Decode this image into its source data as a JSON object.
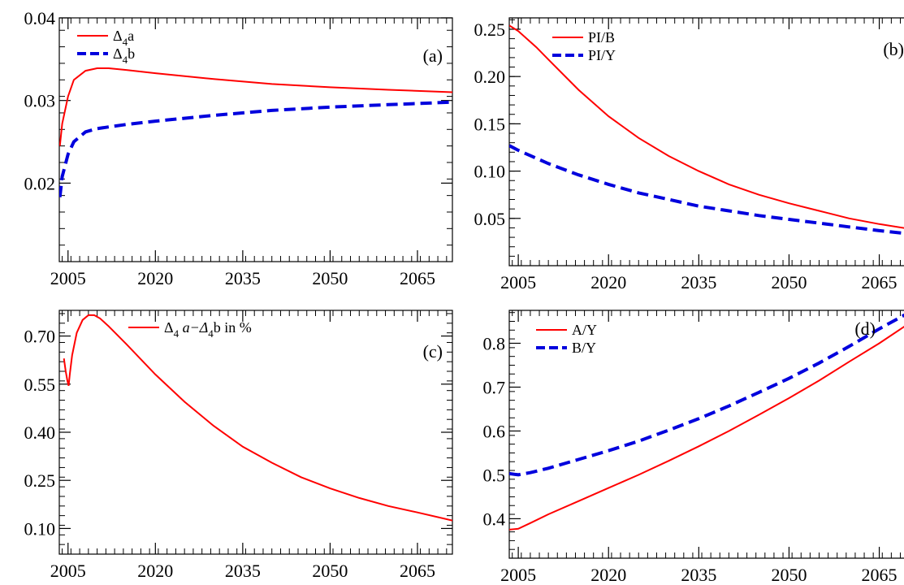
{
  "chart_data": [
    {
      "id": "a",
      "type": "line",
      "panel_tag": "(a)",
      "xlim": [
        2003.5,
        2071
      ],
      "ylim": [
        0.0105,
        0.04
      ],
      "xticks": [
        2005,
        2020,
        2035,
        2050,
        2065
      ],
      "yticks": [
        0.02,
        0.03,
        0.04
      ],
      "ytick_labels": [
        "0.02",
        "0.03",
        "0.04"
      ],
      "grid": false,
      "legend": "top-left",
      "series": [
        {
          "legend": "Δ",
          "legend_sub": "4",
          "legend_tail": "a",
          "color": "#ff0000",
          "dash": "solid",
          "x": [
            2003.6,
            2004,
            2005,
            2006,
            2008,
            2010,
            2012,
            2015,
            2020,
            2030,
            2040,
            2050,
            2060,
            2071
          ],
          "y": [
            0.0245,
            0.0272,
            0.0305,
            0.0325,
            0.0336,
            0.0339,
            0.0339,
            0.0337,
            0.0333,
            0.0326,
            0.032,
            0.0316,
            0.0313,
            0.031
          ]
        },
        {
          "legend": "Δ",
          "legend_sub": "4",
          "legend_tail": "b",
          "color": "#0000dd",
          "dash": "dashed",
          "x": [
            2003.6,
            2004,
            2005,
            2006,
            2008,
            2010,
            2012,
            2015,
            2020,
            2030,
            2040,
            2050,
            2060,
            2071
          ],
          "y": [
            0.0183,
            0.0208,
            0.0235,
            0.025,
            0.0262,
            0.0266,
            0.0268,
            0.0271,
            0.0275,
            0.0282,
            0.0288,
            0.0292,
            0.0295,
            0.0298
          ]
        }
      ]
    },
    {
      "id": "b",
      "type": "line",
      "panel_tag": "(b)",
      "xlim": [
        2003.5,
        2071
      ],
      "ylim": [
        0.0,
        0.262
      ],
      "xticks": [
        2005,
        2020,
        2035,
        2050,
        2065
      ],
      "yticks": [
        0.05,
        0.1,
        0.15,
        0.2,
        0.25
      ],
      "ytick_labels": [
        "0.05",
        "0.10",
        "0.15",
        "0.20",
        "0.25"
      ],
      "grid": false,
      "legend": "top-left",
      "series": [
        {
          "legend": "PI/B",
          "color": "#ff0000",
          "dash": "solid",
          "x": [
            2003.5,
            2005,
            2008,
            2010,
            2015,
            2020,
            2025,
            2030,
            2035,
            2040,
            2045,
            2050,
            2055,
            2060,
            2065,
            2071
          ],
          "y": [
            0.254,
            0.248,
            0.231,
            0.218,
            0.186,
            0.158,
            0.135,
            0.116,
            0.1,
            0.086,
            0.075,
            0.066,
            0.058,
            0.05,
            0.044,
            0.038
          ]
        },
        {
          "legend": "PI/Y",
          "color": "#0000dd",
          "dash": "dashed",
          "x": [
            2003.5,
            2005,
            2010,
            2015,
            2020,
            2025,
            2030,
            2035,
            2040,
            2045,
            2050,
            2055,
            2060,
            2065,
            2071
          ],
          "y": [
            0.127,
            0.122,
            0.108,
            0.096,
            0.086,
            0.077,
            0.07,
            0.063,
            0.058,
            0.053,
            0.049,
            0.045,
            0.041,
            0.037,
            0.033
          ]
        }
      ]
    },
    {
      "id": "c",
      "type": "line",
      "panel_tag": "(c)",
      "xlim": [
        2003.5,
        2071
      ],
      "ylim": [
        0.02,
        0.78
      ],
      "xticks": [
        2005,
        2020,
        2035,
        2050,
        2065
      ],
      "yticks": [
        0.1,
        0.25,
        0.4,
        0.55,
        0.7
      ],
      "ytick_labels": [
        "0.10",
        "0.25",
        "0.40",
        "0.55",
        "0.70"
      ],
      "grid": false,
      "legend": "top-right",
      "series": [
        {
          "legend": "Δ",
          "legend_sub": "4",
          "legend_tail": " a−Δ",
          "legend_sub2": "4",
          "legend_tail2": "b in %",
          "color": "#ff0000",
          "dash": "solid",
          "x": [
            2004.3,
            2004.6,
            2004.9,
            2005.1,
            2005.3,
            2005.7,
            2006.5,
            2007.5,
            2008.5,
            2009.5,
            2010.5,
            2012,
            2015,
            2020,
            2025,
            2030,
            2035,
            2040,
            2045,
            2050,
            2055,
            2060,
            2065,
            2071
          ],
          "y": [
            0.63,
            0.59,
            0.56,
            0.545,
            0.58,
            0.64,
            0.71,
            0.75,
            0.765,
            0.765,
            0.755,
            0.73,
            0.675,
            0.58,
            0.495,
            0.42,
            0.355,
            0.305,
            0.26,
            0.225,
            0.195,
            0.17,
            0.15,
            0.125
          ]
        }
      ]
    },
    {
      "id": "d",
      "type": "line",
      "panel_tag": "(d)",
      "xlim": [
        2003.5,
        2071
      ],
      "ylim": [
        0.31,
        0.875
      ],
      "xticks": [
        2005,
        2020,
        2035,
        2050,
        2065
      ],
      "yticks": [
        0.4,
        0.5,
        0.6,
        0.7,
        0.8
      ],
      "ytick_labels": [
        "0.4",
        "0.5",
        "0.6",
        "0.7",
        "0.8"
      ],
      "grid": false,
      "legend": "top-left",
      "series": [
        {
          "legend": "A/Y",
          "color": "#ff0000",
          "dash": "solid",
          "x": [
            2003.5,
            2005,
            2007,
            2010,
            2015,
            2020,
            2025,
            2030,
            2035,
            2040,
            2045,
            2050,
            2055,
            2060,
            2065,
            2071
          ],
          "y": [
            0.375,
            0.377,
            0.39,
            0.41,
            0.44,
            0.47,
            0.5,
            0.532,
            0.565,
            0.6,
            0.637,
            0.675,
            0.715,
            0.758,
            0.8,
            0.855
          ]
        },
        {
          "legend": "B/Y",
          "color": "#0000dd",
          "dash": "dashed",
          "x": [
            2003.5,
            2005,
            2007,
            2010,
            2015,
            2020,
            2025,
            2030,
            2035,
            2040,
            2045,
            2050,
            2055,
            2060,
            2065,
            2071
          ],
          "y": [
            0.503,
            0.5,
            0.505,
            0.515,
            0.535,
            0.555,
            0.577,
            0.602,
            0.628,
            0.657,
            0.688,
            0.72,
            0.755,
            0.793,
            0.833,
            0.878
          ]
        }
      ]
    }
  ]
}
